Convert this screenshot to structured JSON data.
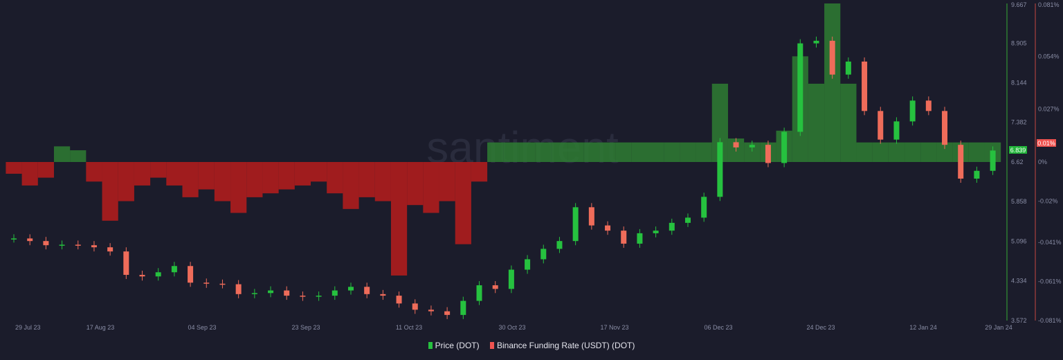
{
  "watermark": "santiment",
  "legend": [
    {
      "label": "Price (DOT)",
      "color": "#26c13f"
    },
    {
      "label": "Binance Funding Rate (USDT) (DOT)",
      "color": "#ef5350"
    }
  ],
  "chart_data": {
    "type": "candlestick+bar",
    "x_ticks": [
      "29 Jul 23",
      "17 Aug 23",
      "04 Sep 23",
      "23 Sep 23",
      "11 Oct 23",
      "30 Oct 23",
      "17 Nov 23",
      "06 Dec 23",
      "24 Dec 23",
      "12 Jan 24",
      "29 Jan 24"
    ],
    "price_axis": {
      "ticks": [
        "9.667",
        "8.905",
        "8.144",
        "7.382",
        "6.62",
        "5.858",
        "5.096",
        "4.334",
        "3.572"
      ],
      "range": [
        3.572,
        9.667
      ],
      "last_value": "6.839"
    },
    "funding_axis": {
      "ticks": [
        "0.081%",
        "0.054%",
        "0.027%",
        "0%",
        "-0.02%",
        "-0.041%",
        "-0.061%",
        "-0.081%"
      ],
      "range": [
        -0.081,
        0.081
      ],
      "last_value": "0.01%"
    },
    "colors": {
      "up": "#26c13f",
      "down": "#ef6c5a",
      "funding_pos": "#2e7d32",
      "funding_neg": "#b71c1c"
    },
    "dates": [
      "2023-07-29",
      "2023-08-01",
      "2023-08-04",
      "2023-08-07",
      "2023-08-10",
      "2023-08-13",
      "2023-08-16",
      "2023-08-19",
      "2023-08-22",
      "2023-08-25",
      "2023-08-28",
      "2023-08-31",
      "2023-09-03",
      "2023-09-06",
      "2023-09-09",
      "2023-09-12",
      "2023-09-15",
      "2023-09-18",
      "2023-09-21",
      "2023-09-24",
      "2023-09-27",
      "2023-09-30",
      "2023-10-03",
      "2023-10-06",
      "2023-10-09",
      "2023-10-12",
      "2023-10-15",
      "2023-10-18",
      "2023-10-21",
      "2023-10-24",
      "2023-10-27",
      "2023-10-30",
      "2023-11-02",
      "2023-11-05",
      "2023-11-08",
      "2023-11-11",
      "2023-11-14",
      "2023-11-17",
      "2023-11-20",
      "2023-11-23",
      "2023-11-26",
      "2023-11-29",
      "2023-12-02",
      "2023-12-05",
      "2023-12-08",
      "2023-12-11",
      "2023-12-14",
      "2023-12-17",
      "2023-12-20",
      "2023-12-23",
      "2023-12-26",
      "2023-12-29",
      "2024-01-01",
      "2024-01-04",
      "2024-01-07",
      "2024-01-10",
      "2024-01-13",
      "2024-01-16",
      "2024-01-19",
      "2024-01-22",
      "2024-01-25",
      "2024-01-28"
    ],
    "series": [
      {
        "name": "Price (DOT)",
        "values": [
          5.15,
          5.1,
          5.02,
          5.03,
          5.02,
          4.98,
          4.9,
          4.45,
          4.42,
          4.5,
          4.62,
          4.3,
          4.28,
          4.27,
          4.08,
          4.1,
          4.15,
          4.05,
          4.03,
          4.05,
          4.15,
          4.22,
          4.08,
          4.05,
          3.9,
          3.78,
          3.75,
          3.68,
          3.95,
          4.25,
          4.18,
          4.55,
          4.75,
          4.95,
          5.1,
          5.75,
          5.4,
          5.3,
          5.05,
          5.25,
          5.3,
          5.45,
          5.55,
          5.95,
          7.0,
          6.9,
          6.95,
          6.6,
          7.2,
          8.9,
          8.95,
          8.3,
          8.55,
          7.6,
          7.05,
          7.4,
          7.8,
          7.6,
          6.95,
          6.3,
          6.45,
          6.84
        ]
      },
      {
        "name": "Binance Funding Rate (USDT) (DOT)",
        "values": [
          -0.006,
          -0.012,
          -0.008,
          0.008,
          0.006,
          -0.01,
          -0.03,
          -0.02,
          -0.012,
          -0.008,
          -0.012,
          -0.018,
          -0.014,
          -0.02,
          -0.026,
          -0.018,
          -0.016,
          -0.014,
          -0.012,
          -0.01,
          -0.016,
          -0.024,
          -0.018,
          -0.02,
          -0.058,
          -0.022,
          -0.026,
          -0.02,
          -0.042,
          -0.01,
          0.01,
          0.01,
          0.01,
          0.01,
          0.01,
          0.01,
          0.01,
          0.01,
          0.01,
          0.01,
          0.01,
          0.01,
          0.01,
          0.01,
          0.04,
          0.012,
          0.01,
          0.01,
          0.016,
          0.054,
          0.04,
          0.081,
          0.04,
          0.01,
          0.01,
          0.01,
          0.01,
          0.01,
          0.01,
          0.01,
          0.01,
          0.01
        ]
      }
    ]
  }
}
